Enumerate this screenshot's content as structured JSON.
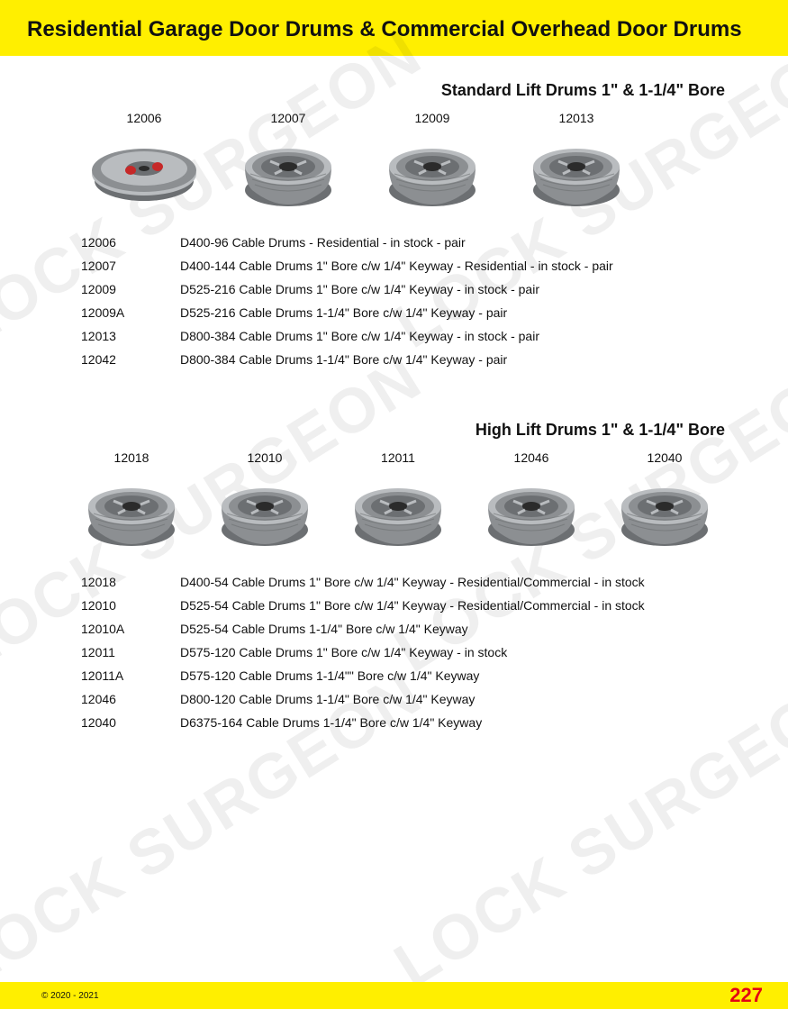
{
  "colors": {
    "band": "#ffef00",
    "text": "#111111",
    "pageNumber": "#e30613",
    "background": "#ffffff",
    "drumBody": "#b9bcbf",
    "drumDark": "#8c8f92",
    "drumShadow": "#6c6f72",
    "drumHub": "#2b2b2b",
    "drumAccent": "#c62828"
  },
  "header": {
    "title": "Residential Garage Door Drums & Commercial Overhead Door Drums"
  },
  "section1": {
    "title": "Standard Lift Drums 1\" & 1-1/4\" Bore",
    "drums": [
      {
        "label": "12006"
      },
      {
        "label": "12007"
      },
      {
        "label": "12009"
      },
      {
        "label": "12013"
      }
    ],
    "specs": [
      {
        "code": "12006",
        "desc": "D400-96 Cable Drums - Residential - in stock - pair"
      },
      {
        "code": "12007",
        "desc": "D400-144 Cable Drums 1\" Bore c/w 1/4\" Keyway - Residential - in stock - pair"
      },
      {
        "code": "12009",
        "desc": "D525-216 Cable Drums 1\" Bore c/w 1/4\" Keyway - in stock - pair"
      },
      {
        "code": "12009A",
        "desc": "D525-216 Cable Drums 1-1/4\" Bore c/w 1/4\" Keyway - pair"
      },
      {
        "code": "12013",
        "desc": "D800-384 Cable Drums 1\" Bore c/w 1/4\" Keyway - in stock - pair"
      },
      {
        "code": "12042",
        "desc": "D800-384 Cable Drums 1-1/4\" Bore c/w 1/4\" Keyway  - pair"
      }
    ]
  },
  "section2": {
    "title": "High Lift Drums 1\" & 1-1/4\" Bore",
    "drums": [
      {
        "label": "12018"
      },
      {
        "label": "12010"
      },
      {
        "label": "12011"
      },
      {
        "label": "12046"
      },
      {
        "label": "12040"
      }
    ],
    "specs": [
      {
        "code": "12018",
        "desc": "D400-54 Cable Drums 1\" Bore c/w 1/4\" Keyway - Residential/Commercial - in stock"
      },
      {
        "code": "12010",
        "desc": "D525-54 Cable Drums 1\" Bore c/w 1/4\" Keyway - Residential/Commercial - in stock"
      },
      {
        "code": "12010A",
        "desc": "D525-54 Cable Drums 1-1/4\" Bore c/w 1/4\" Keyway"
      },
      {
        "code": "12011",
        "desc": "D575-120 Cable Drums 1\" Bore c/w 1/4\" Keyway - in stock"
      },
      {
        "code": "12011A",
        "desc": "D575-120 Cable Drums 1-1/4\"\" Bore c/w 1/4\" Keyway"
      },
      {
        "code": "12046",
        "desc": "D800-120 Cable Drums 1-1/4\" Bore c/w 1/4\" Keyway"
      },
      {
        "code": "12040",
        "desc": "D6375-164 Cable Drums 1-1/4\" Bore c/w 1/4\" Keyway"
      }
    ]
  },
  "footer": {
    "copyright": "© 2020 - 2021",
    "pageNumber": "227"
  },
  "watermark": {
    "text": "LOCK SURGEON"
  }
}
